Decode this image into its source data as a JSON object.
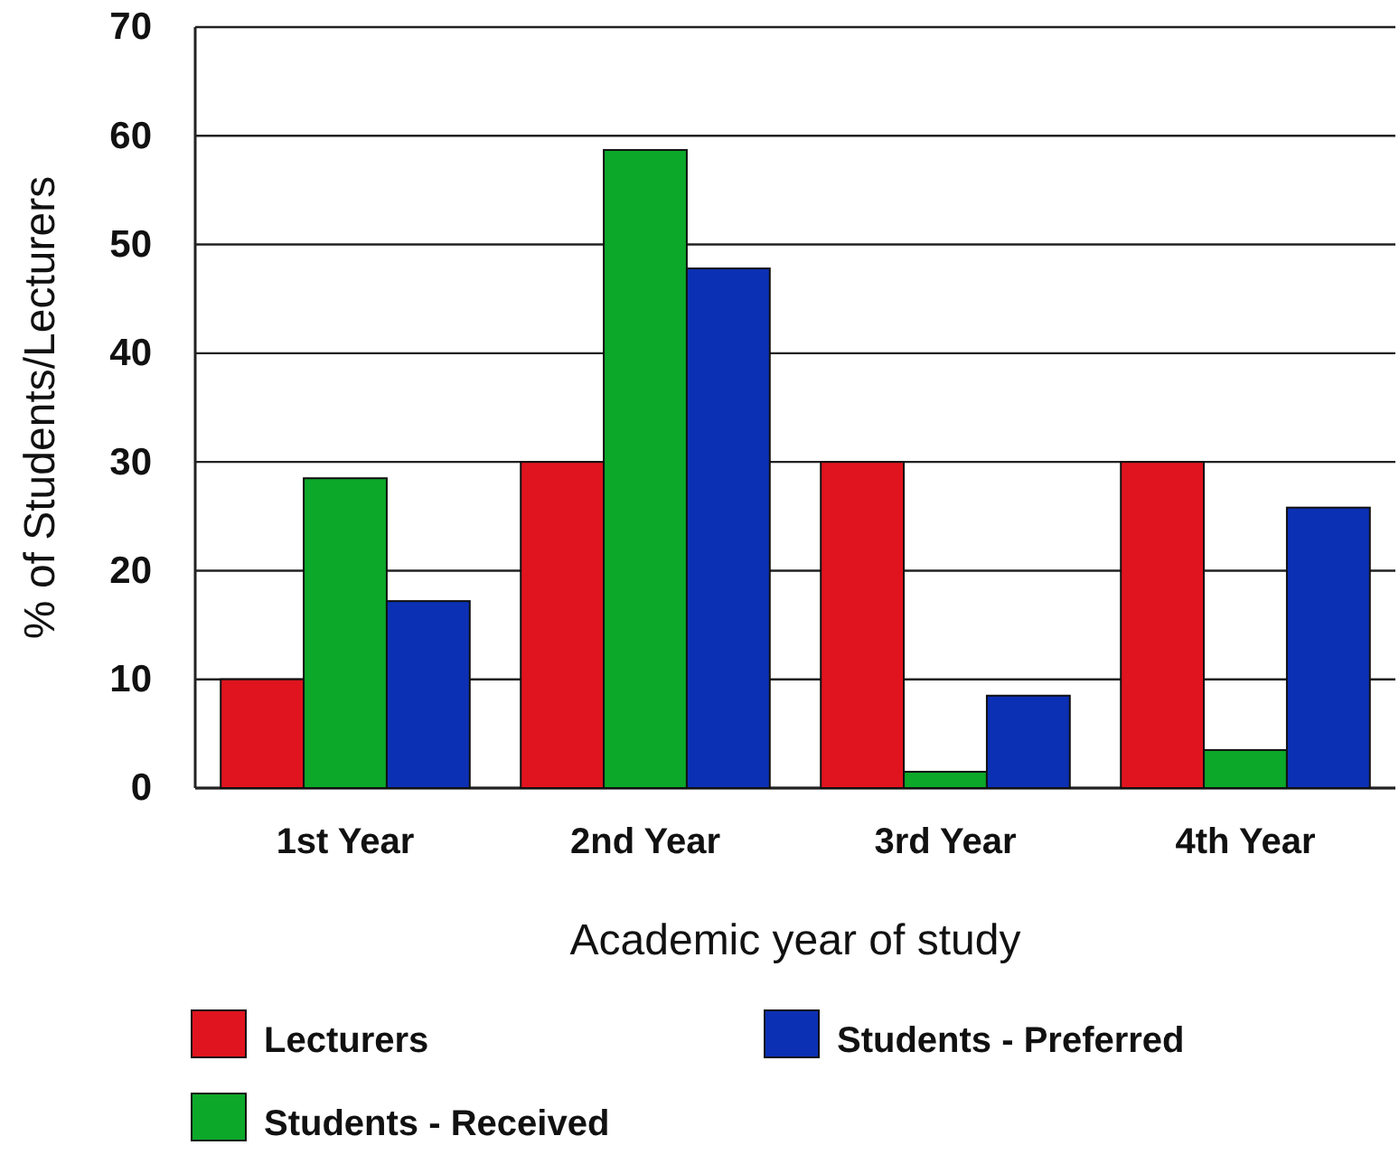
{
  "chart_data": {
    "type": "bar",
    "xlabel": "Academic year of study",
    "ylabel": "% of Students/Lecturers",
    "categories": [
      "1st Year",
      "2nd Year",
      "3rd Year",
      "4th Year"
    ],
    "series": [
      {
        "name": "Lecturers",
        "color": "#e0141e",
        "values": [
          10,
          30,
          30,
          30
        ]
      },
      {
        "name": "Students - Received",
        "color": "#0ca82a",
        "values": [
          28.5,
          58.7,
          1.5,
          3.5
        ]
      },
      {
        "name": "Students - Preferred",
        "color": "#0c30b4",
        "values": [
          17.2,
          47.8,
          8.5,
          25.8
        ]
      }
    ],
    "ylim": [
      0,
      70
    ],
    "yticks": [
      0,
      10,
      20,
      30,
      40,
      50,
      60,
      70
    ],
    "grid": "y",
    "legend": "bottom"
  }
}
